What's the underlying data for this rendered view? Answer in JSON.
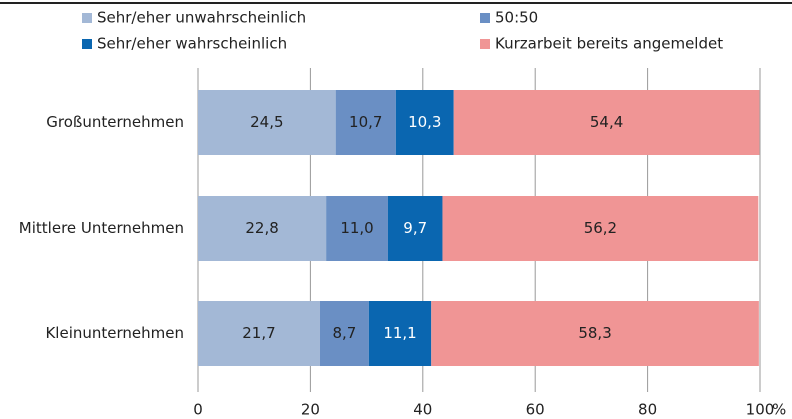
{
  "chart_data": {
    "type": "stacked-bar-horizontal",
    "categories": [
      "Großunternehmen",
      "Mittlere Unternehmen",
      "Kleinunternehmen"
    ],
    "series": [
      {
        "name": "Sehr/eher unwahrscheinlich",
        "color": "#a3b8d6",
        "values": [
          24.5,
          22.8,
          21.7
        ],
        "value_labels": [
          "24,5",
          "22,8",
          "21,7"
        ]
      },
      {
        "name": "50:50",
        "color": "#6a8fc4",
        "values": [
          10.7,
          11.0,
          8.7
        ],
        "value_labels": [
          "10,7",
          "11,0",
          "8,7"
        ]
      },
      {
        "name": "Sehr/eher wahrscheinlich",
        "color": "#0a66b0",
        "values": [
          10.3,
          9.7,
          11.1
        ],
        "value_labels": [
          "10,3",
          "9,7",
          "11,1"
        ]
      },
      {
        "name": "Kurzarbeit bereits angemeldet",
        "color": "#f09595",
        "values": [
          54.4,
          56.2,
          58.3
        ],
        "value_labels": [
          "54,4",
          "56,2",
          "58,3"
        ]
      }
    ],
    "xlim": [
      0,
      100
    ],
    "xticks": [
      0,
      20,
      40,
      60,
      80,
      100
    ],
    "xlabel": "%",
    "grid": true
  }
}
